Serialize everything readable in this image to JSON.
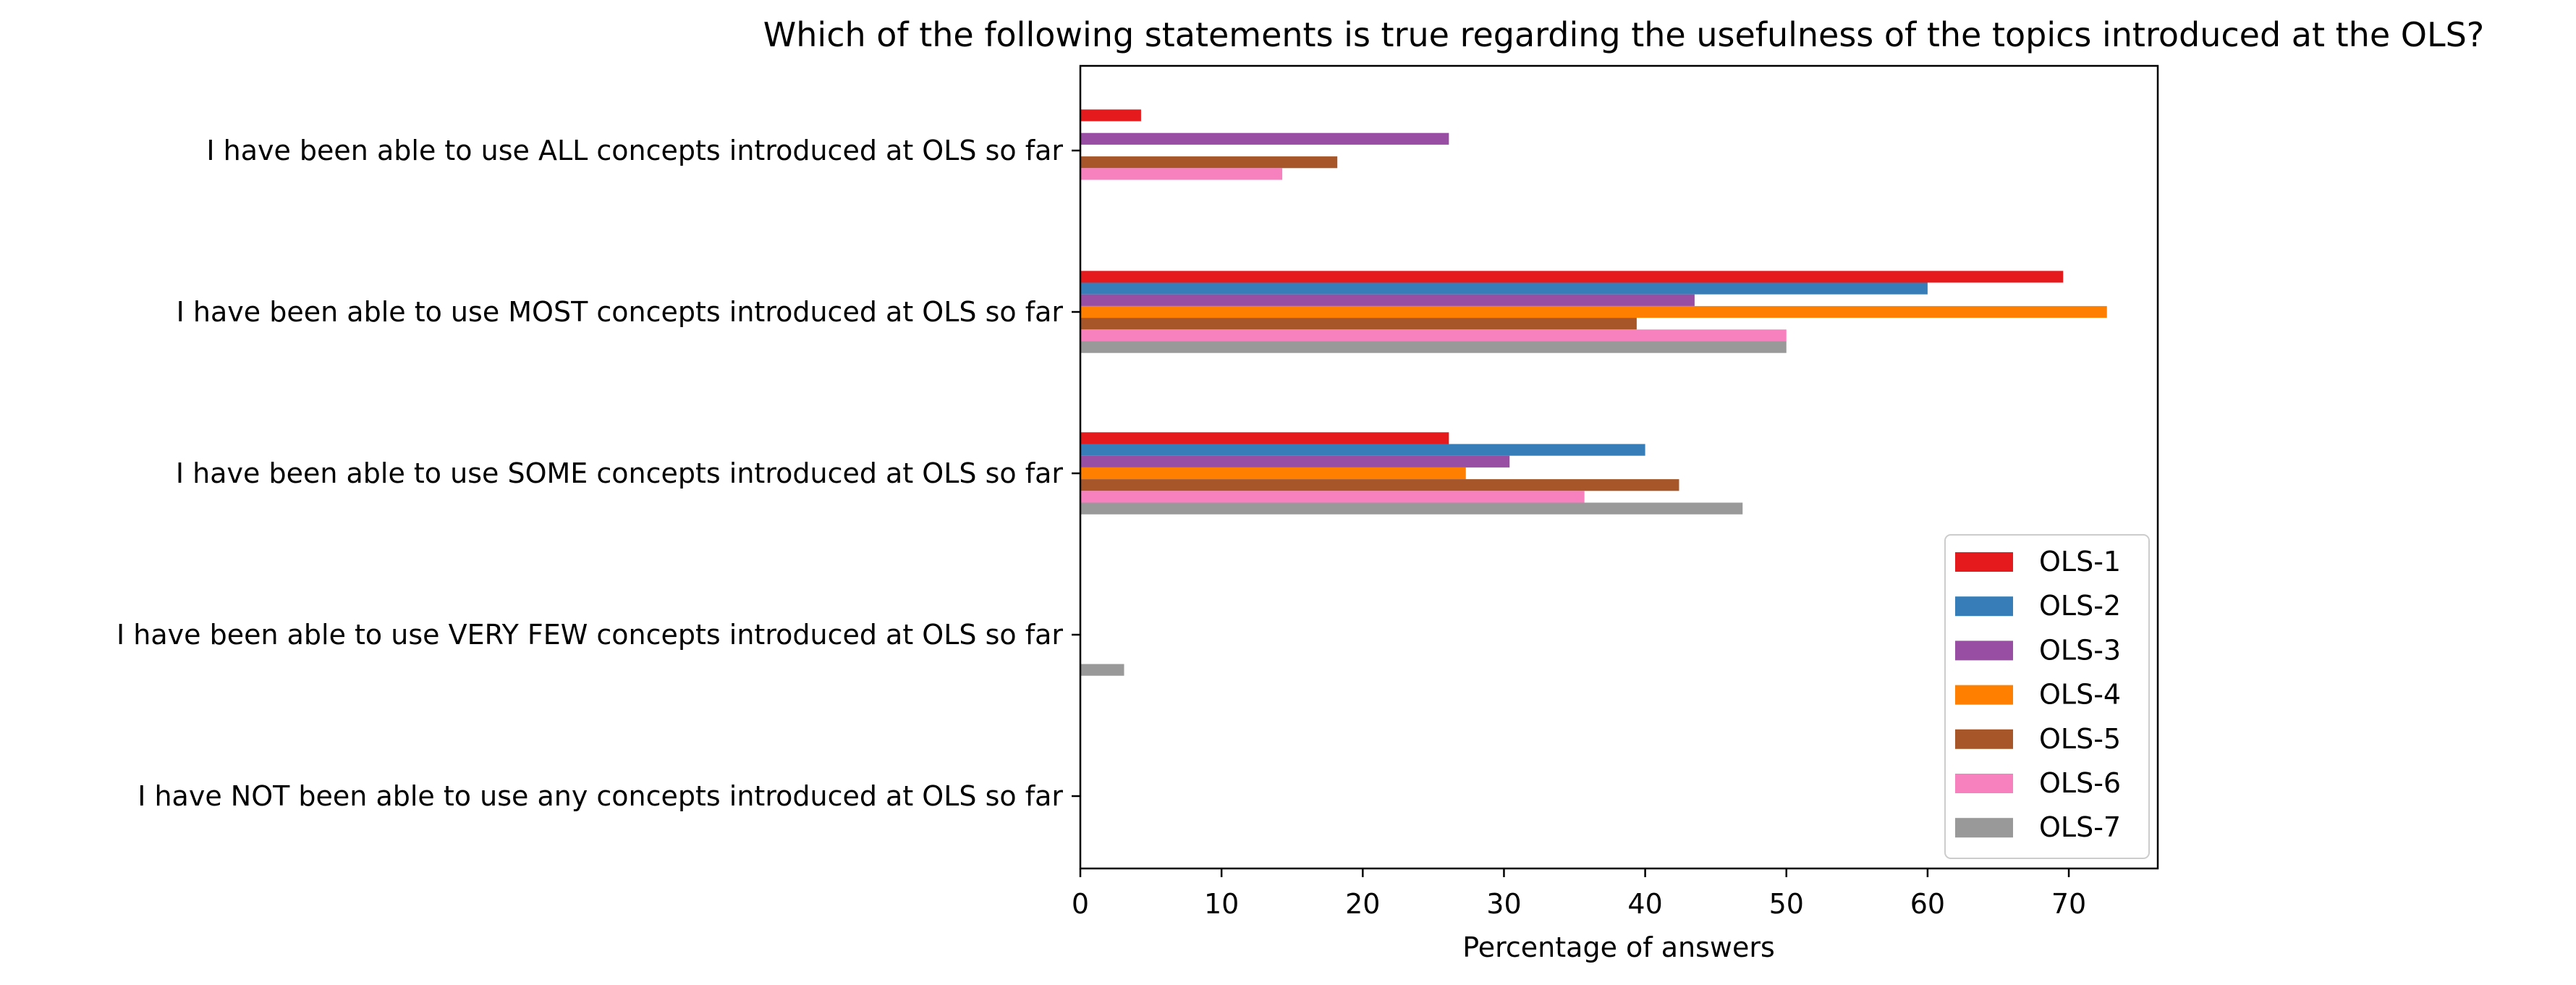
{
  "chart_data": {
    "type": "bar",
    "orientation": "horizontal",
    "title": "Which of the following statements is true regarding the usefulness of the topics introduced at the OLS?",
    "xlabel": "Percentage of answers",
    "ylabel": "",
    "xlim": [
      0,
      76.3
    ],
    "xticks": [
      0,
      10,
      20,
      30,
      40,
      50,
      60,
      70
    ],
    "grid": false,
    "legend_position": "lower-right",
    "categories": [
      "I have been able to use ALL concepts introduced at OLS so far",
      "I have been able to use MOST concepts introduced at OLS so far",
      "I have been able to use SOME concepts introduced at OLS so far",
      "I have been able to use VERY FEW concepts introduced at OLS so far",
      "I have NOT been able to use any concepts introduced at OLS so far"
    ],
    "series": [
      {
        "name": "OLS-1",
        "color": "#e41a1c",
        "values": [
          4.3,
          69.6,
          26.1,
          0,
          0
        ]
      },
      {
        "name": "OLS-2",
        "color": "#377eb8",
        "values": [
          0,
          60.0,
          40.0,
          0,
          0
        ]
      },
      {
        "name": "OLS-3",
        "color": "#984ea3",
        "values": [
          26.1,
          43.5,
          30.4,
          0,
          0
        ]
      },
      {
        "name": "OLS-4",
        "color": "#ff7f00",
        "values": [
          0,
          72.7,
          27.3,
          0,
          0
        ]
      },
      {
        "name": "OLS-5",
        "color": "#a65628",
        "values": [
          18.2,
          39.4,
          42.4,
          0,
          0
        ]
      },
      {
        "name": "OLS-6",
        "color": "#f781bf",
        "values": [
          14.3,
          50.0,
          35.7,
          0,
          0
        ]
      },
      {
        "name": "OLS-7",
        "color": "#999999",
        "values": [
          0,
          50.0,
          46.9,
          3.1,
          0
        ]
      }
    ]
  }
}
